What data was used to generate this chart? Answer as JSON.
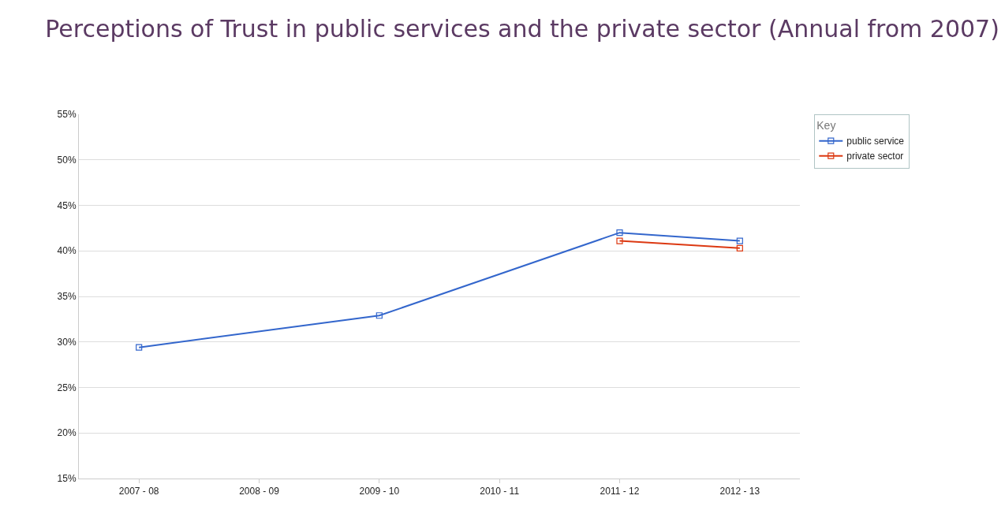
{
  "chart_data": {
    "type": "line",
    "title": "Perceptions of Trust in public services and the private sector (Annual from 2007)",
    "categories": [
      "2007 - 08",
      "2008 - 09",
      "2009 - 10",
      "2010 - 11",
      "2011 - 12",
      "2012 - 13"
    ],
    "series": [
      {
        "name": "public service",
        "color": "#3366cc",
        "values": [
          29.4,
          null,
          32.9,
          null,
          42.0,
          41.1
        ]
      },
      {
        "name": "private sector",
        "color": "#dc3912",
        "values": [
          null,
          null,
          null,
          null,
          41.1,
          40.3
        ]
      }
    ],
    "ylim": [
      15,
      55
    ],
    "yticks": [
      {
        "value": 15,
        "label": "15%"
      },
      {
        "value": 20,
        "label": "20%"
      },
      {
        "value": 25,
        "label": "25%"
      },
      {
        "value": 30,
        "label": "30%"
      },
      {
        "value": 35,
        "label": "35%"
      },
      {
        "value": 40,
        "label": "40%"
      },
      {
        "value": 45,
        "label": "45%"
      },
      {
        "value": 50,
        "label": "50%"
      },
      {
        "value": 55,
        "label": "55%"
      }
    ],
    "grid": "y",
    "legend": "top right",
    "legend_title": "Key",
    "marker": "square",
    "line_style": "solid"
  }
}
